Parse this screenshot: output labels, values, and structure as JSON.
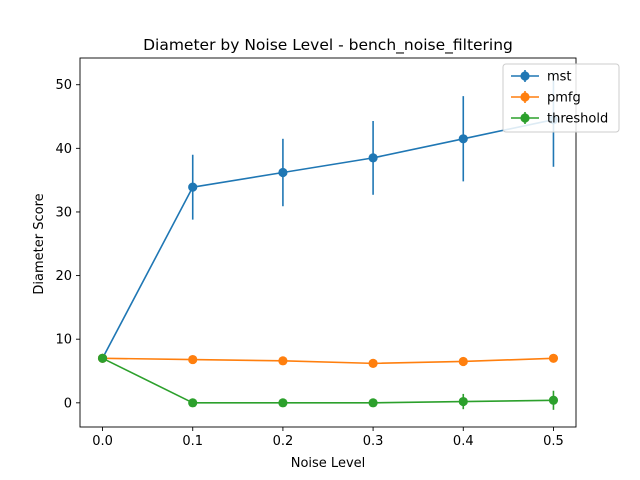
{
  "chart_data": {
    "type": "line",
    "title": "Diameter by Noise Level - bench_noise_filtering",
    "xlabel": "Noise Level",
    "ylabel": "Diameter Score",
    "x": [
      0.0,
      0.1,
      0.2,
      0.3,
      0.4,
      0.5
    ],
    "x_tick_labels": [
      "0.0",
      "0.1",
      "0.2",
      "0.3",
      "0.4",
      "0.5"
    ],
    "y_ticks": [
      0,
      10,
      20,
      30,
      40,
      50
    ],
    "y_tick_labels": [
      "0",
      "10",
      "20",
      "30",
      "40",
      "50"
    ],
    "xlim": [
      -0.025,
      0.525
    ],
    "ylim": [
      -3.8,
      54.2
    ],
    "grid": false,
    "legend_position": "top-right",
    "error_bars": true,
    "series": [
      {
        "name": "mst",
        "color": "#1f77b4",
        "values": [
          7.0,
          33.9,
          36.2,
          38.5,
          41.5,
          44.5
        ],
        "errors": [
          0.0,
          5.1,
          5.3,
          5.8,
          6.7,
          7.4
        ]
      },
      {
        "name": "pmfg",
        "color": "#ff7f0e",
        "values": [
          7.0,
          6.8,
          6.6,
          6.2,
          6.5,
          7.0
        ],
        "errors": [
          0.0,
          0.0,
          0.0,
          0.0,
          0.0,
          0.0
        ]
      },
      {
        "name": "threshold",
        "color": "#2ca02c",
        "values": [
          7.0,
          0.0,
          0.0,
          0.0,
          0.2,
          0.4
        ],
        "errors": [
          0.0,
          0.0,
          0.0,
          0.0,
          1.2,
          1.5
        ]
      }
    ]
  }
}
